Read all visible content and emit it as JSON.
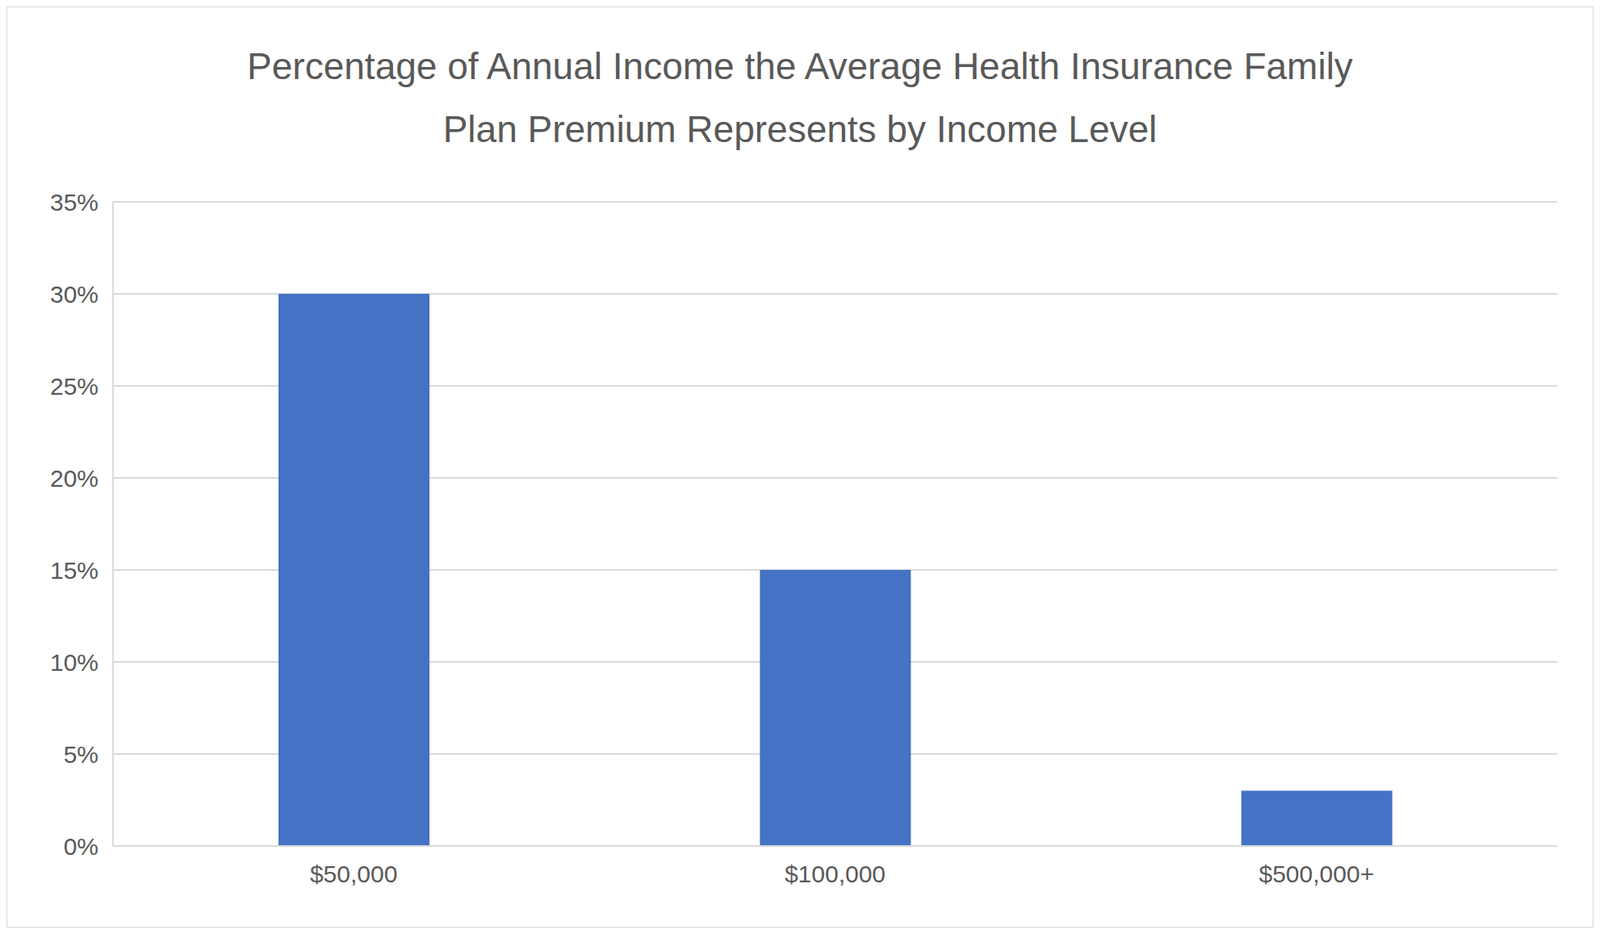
{
  "chart_data": {
    "type": "bar",
    "title": "Percentage of Annual Income the Average Health Insurance Family Plan Premium Represents by Income Level",
    "categories": [
      "$50,000",
      "$100,000",
      "$500,000+"
    ],
    "values": [
      30,
      15,
      3
    ],
    "color": "#4472c4",
    "ylim": [
      0,
      35
    ],
    "yticks": [
      {
        "value": 0,
        "label": "0%"
      },
      {
        "value": 5,
        "label": "5%"
      },
      {
        "value": 10,
        "label": "10%"
      },
      {
        "value": 15,
        "label": "15%"
      },
      {
        "value": 20,
        "label": "20%"
      },
      {
        "value": 25,
        "label": "25%"
      },
      {
        "value": 30,
        "label": "30%"
      },
      {
        "value": 35,
        "label": "35%"
      }
    ],
    "grid": true
  }
}
